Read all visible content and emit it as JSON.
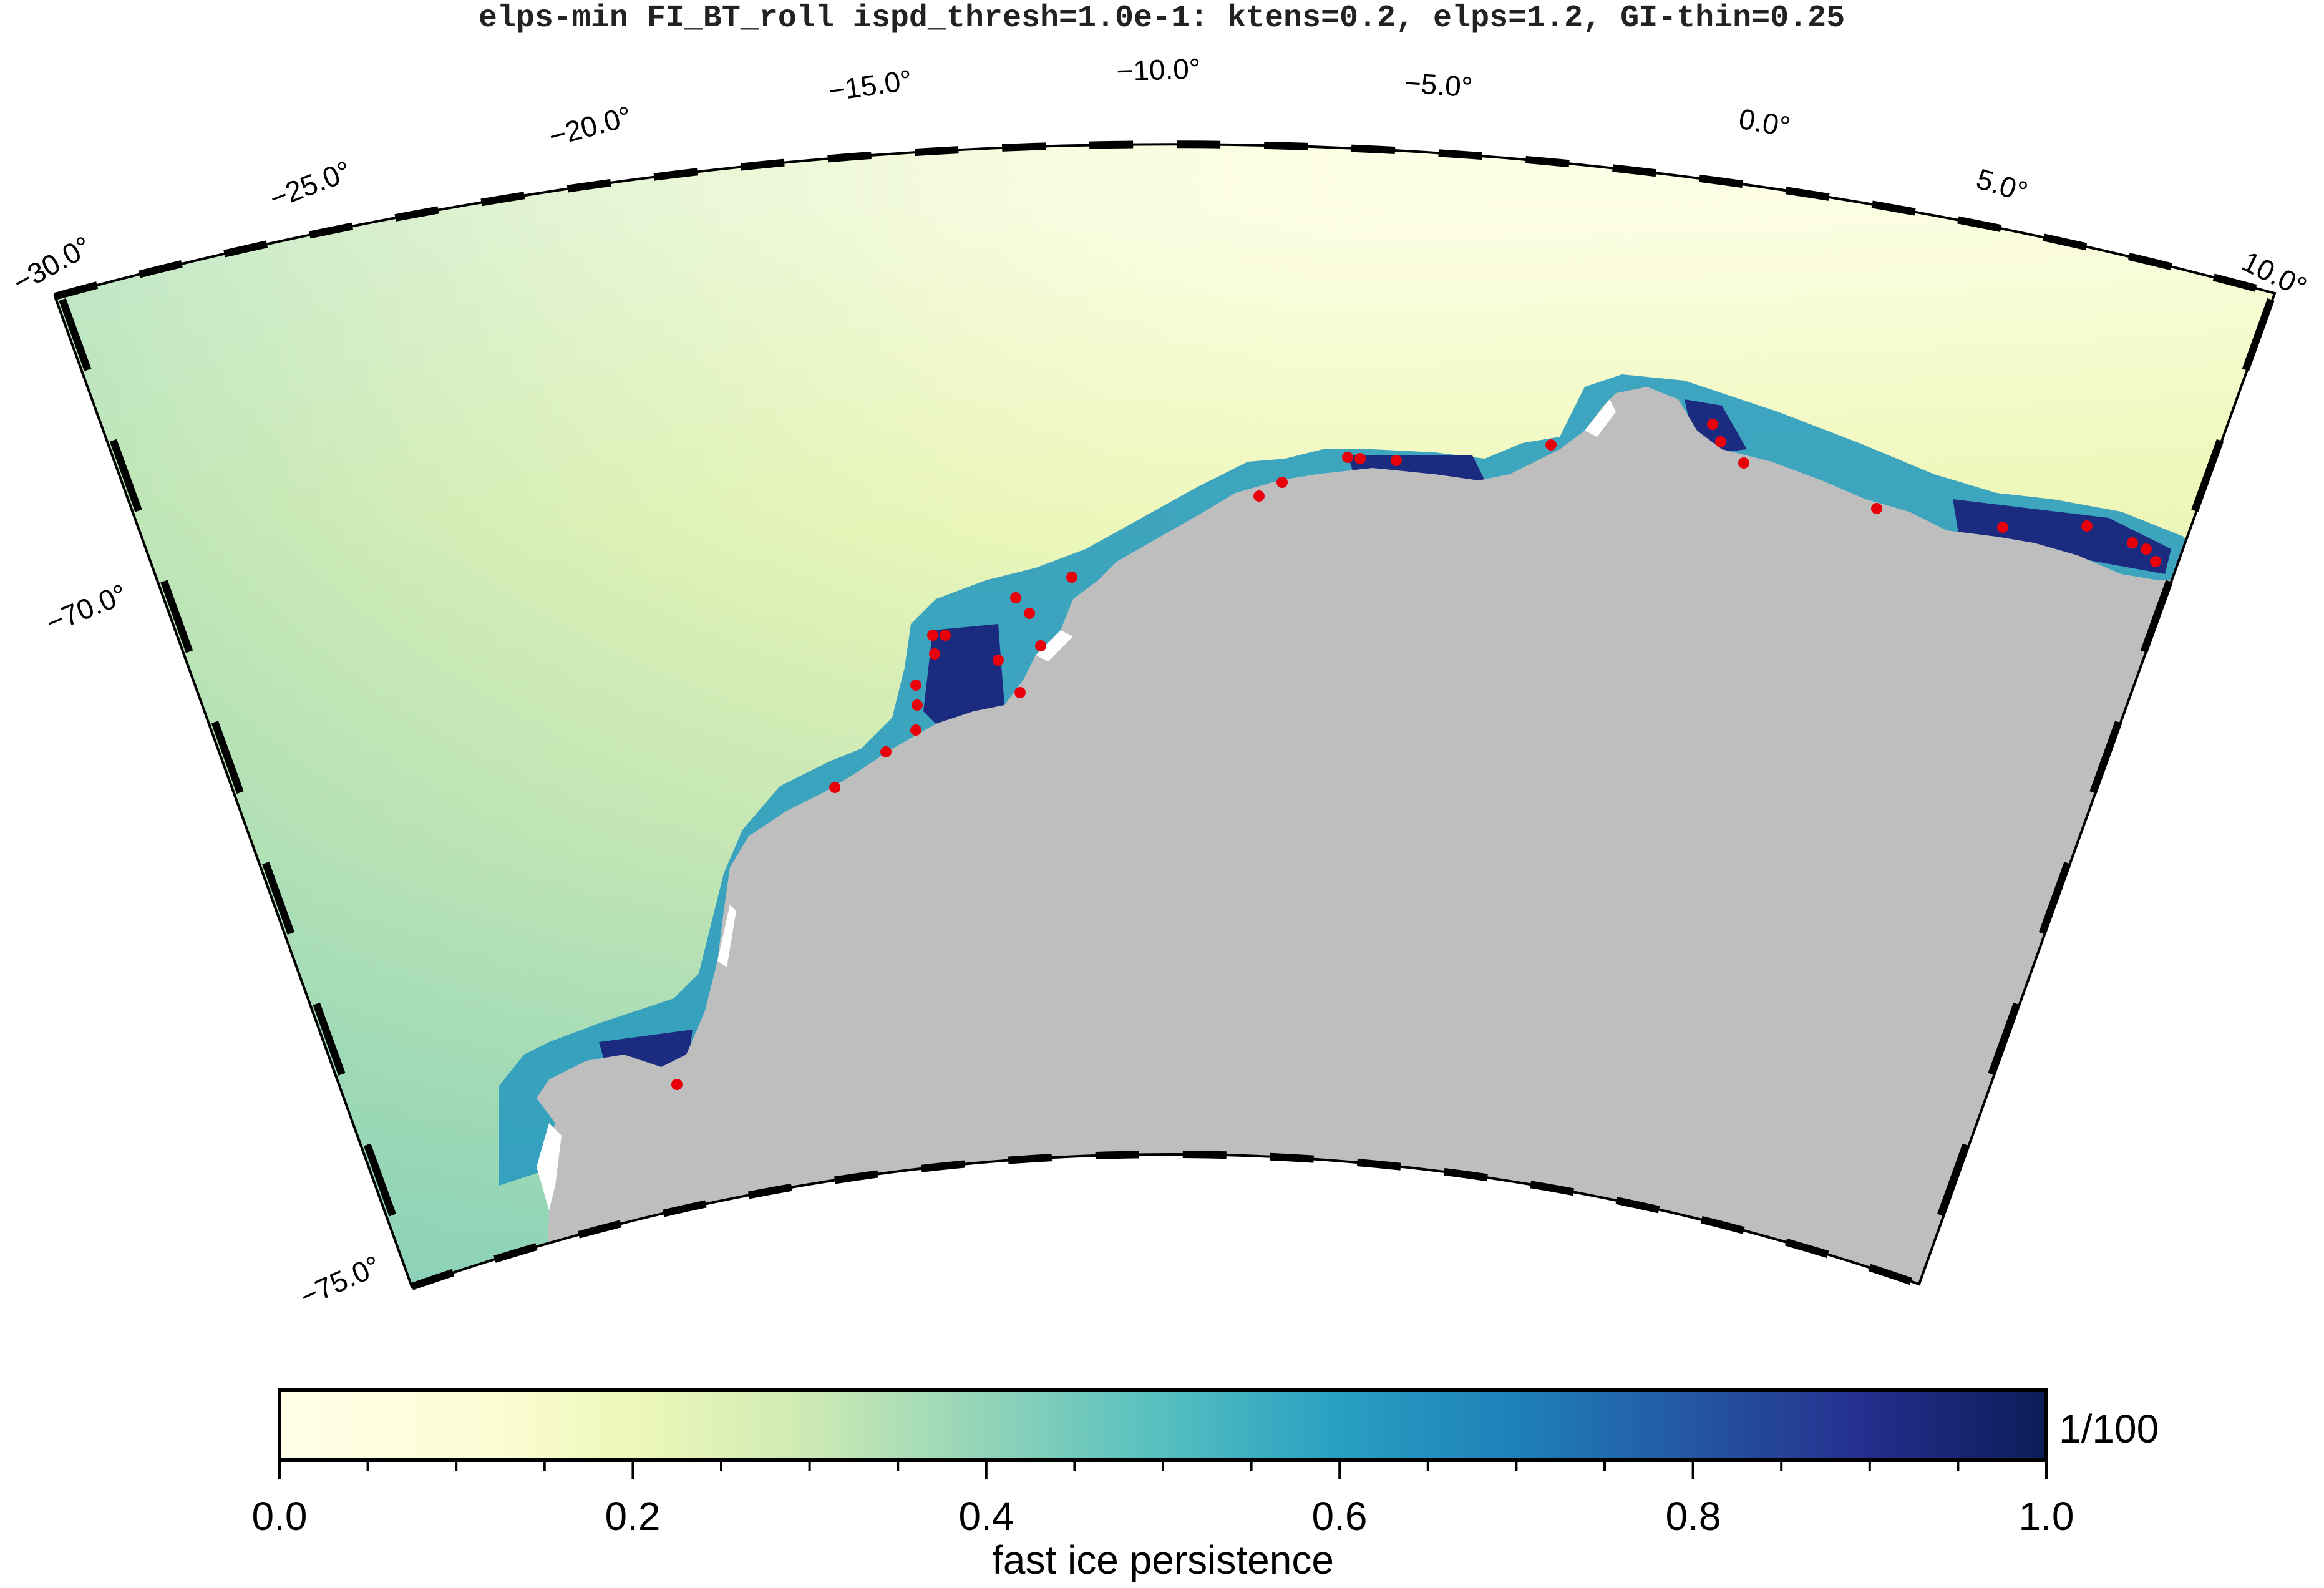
{
  "title": "elps-min FI_BT_roll ispd_thresh=1.0e-1: ktens=0.2, elps=1.2, GI-thin=0.25",
  "map": {
    "longitude_labels": [
      "−30.0°",
      "−25.0°",
      "−20.0°",
      "−15.0°",
      "−10.0°",
      "−5.0°",
      "0.0°",
      "5.0°",
      "10.0°"
    ],
    "latitude_labels": [
      "−70.0°",
      "−75.0°"
    ],
    "lon_range": [
      -30,
      10
    ],
    "lat_range": [
      -75,
      -66
    ],
    "land_color": "#bebebe",
    "ocean_low_color": "#ffffe0",
    "fast_ice_color": "#1b2c80",
    "grounded_iceberg_marker_color": "#e8000b"
  },
  "colorbar": {
    "label": "fast ice persistence",
    "tick_labels": [
      "0.0",
      "0.2",
      "0.4",
      "0.6",
      "0.8",
      "1.0"
    ],
    "range": [
      0.0,
      1.0
    ],
    "extra_label": "1/100",
    "colormap": "YlGnBu",
    "colors": [
      "#ffffe0",
      "#f3f9c0",
      "#d8efb2",
      "#9ed7b6",
      "#5bbfc0",
      "#2498c1",
      "#2466ab",
      "#253495",
      "#081d58"
    ]
  }
}
